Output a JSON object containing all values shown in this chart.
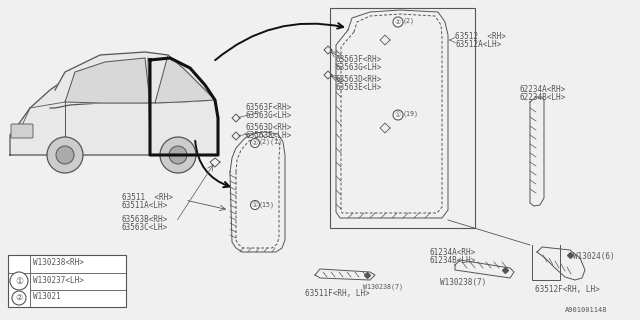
{
  "bg_color": "#f0f0f0",
  "fig_num": "A901001148",
  "lw": 0.7,
  "font_sz": 5.5,
  "dkgray": "#555555",
  "labels": {
    "rear_door_top": [
      "63512  <RH>",
      "63512A<LH>"
    ],
    "clip_FG": [
      "63563F<RH>",
      "63563G<LH>"
    ],
    "clip_DE": [
      "63563D<RH>",
      "63563E<LH>"
    ],
    "clip_BC": [
      "63563B<RH>",
      "63563C<LH>"
    ],
    "front_door": [
      "63511  <RH>",
      "63511A<LH>"
    ],
    "front_door_bot": "63511F<RH, LH>",
    "right_strip": [
      "62234A<RH>",
      "62234B<LH>"
    ],
    "bottom_strip": [
      "61234A<RH>",
      "61234B<LH>"
    ],
    "w130238_7": "W130238(7)",
    "corner_strip": "63512F<RH, LH>",
    "w13024_6": "W13024(6)",
    "legend_1a": "W130238<RH>",
    "legend_1b": "W130237<LH>",
    "legend_2": "W13021"
  }
}
